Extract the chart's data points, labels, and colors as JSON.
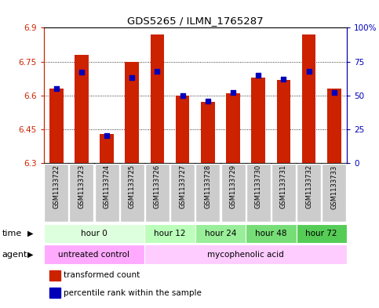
{
  "title": "GDS5265 / ILMN_1765287",
  "samples": [
    "GSM1133722",
    "GSM1133723",
    "GSM1133724",
    "GSM1133725",
    "GSM1133726",
    "GSM1133727",
    "GSM1133728",
    "GSM1133729",
    "GSM1133730",
    "GSM1133731",
    "GSM1133732",
    "GSM1133733"
  ],
  "bar_values": [
    6.63,
    6.78,
    6.43,
    6.75,
    6.87,
    6.6,
    6.57,
    6.61,
    6.68,
    6.67,
    6.87,
    6.63
  ],
  "percentile_values": [
    55,
    67,
    20,
    63,
    68,
    50,
    46,
    52,
    65,
    62,
    68,
    52
  ],
  "bar_bottom": 6.3,
  "ylim": [
    6.3,
    6.9
  ],
  "yticks_left": [
    6.3,
    6.45,
    6.6,
    6.75,
    6.9
  ],
  "yticks_right": [
    0,
    25,
    50,
    75,
    100
  ],
  "bar_color": "#cc2200",
  "blue_color": "#0000bb",
  "time_groups": [
    {
      "label": "hour 0",
      "start": 0,
      "end": 4,
      "color": "#ddffdd"
    },
    {
      "label": "hour 12",
      "start": 4,
      "end": 6,
      "color": "#bbffbb"
    },
    {
      "label": "hour 24",
      "start": 6,
      "end": 8,
      "color": "#99ee99"
    },
    {
      "label": "hour 48",
      "start": 8,
      "end": 10,
      "color": "#77dd77"
    },
    {
      "label": "hour 72",
      "start": 10,
      "end": 12,
      "color": "#55cc55"
    }
  ],
  "agent_groups": [
    {
      "label": "untreated control",
      "start": 0,
      "end": 4,
      "color": "#ffaaff"
    },
    {
      "label": "mycophenolic acid",
      "start": 4,
      "end": 12,
      "color": "#ffccff"
    }
  ],
  "legend_items": [
    {
      "label": "transformed count",
      "color": "#cc2200"
    },
    {
      "label": "percentile rank within the sample",
      "color": "#0000bb"
    }
  ],
  "bg_color": "#ffffff",
  "sample_bg": "#cccccc",
  "grid_yticks": [
    6.45,
    6.6,
    6.75
  ]
}
